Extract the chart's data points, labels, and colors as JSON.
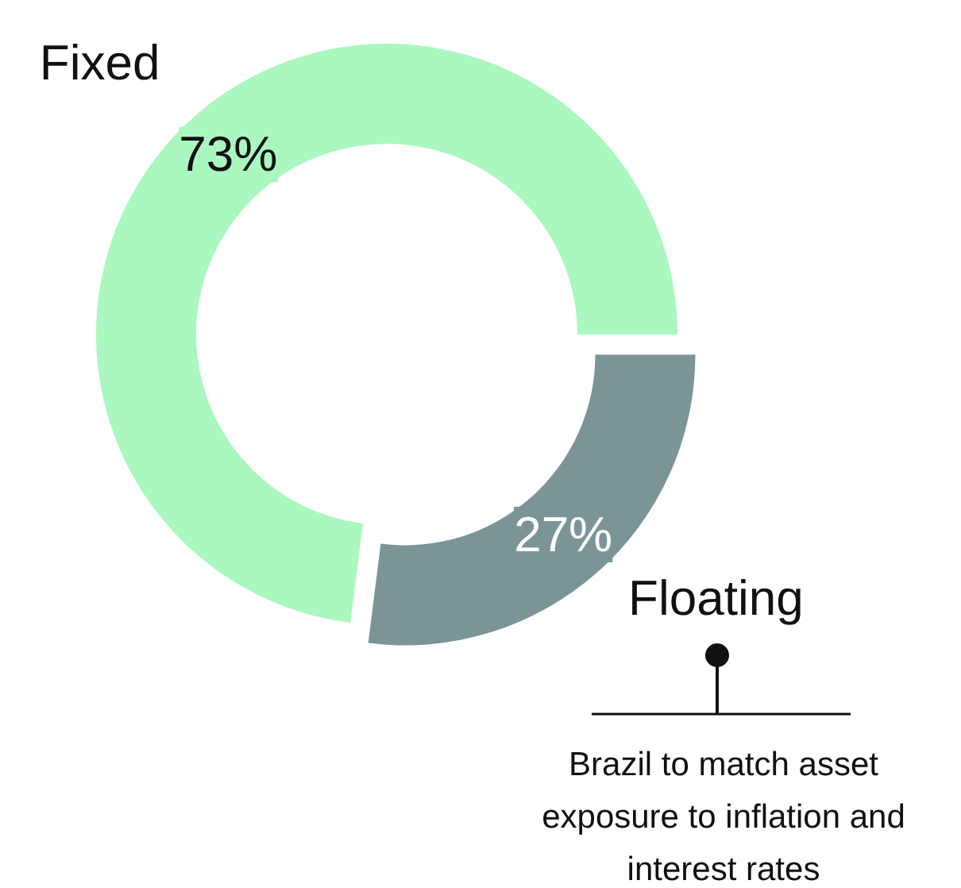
{
  "chart_data": {
    "type": "donut",
    "categories": [
      "Fixed",
      "Floating"
    ],
    "values": [
      73,
      27
    ],
    "colors": [
      "#aaf7bf",
      "#7b9597"
    ],
    "value_labels": [
      "73%",
      "27%"
    ],
    "annotations": [
      "Brazil to match asset exposure to inflation and interest rates"
    ]
  }
}
